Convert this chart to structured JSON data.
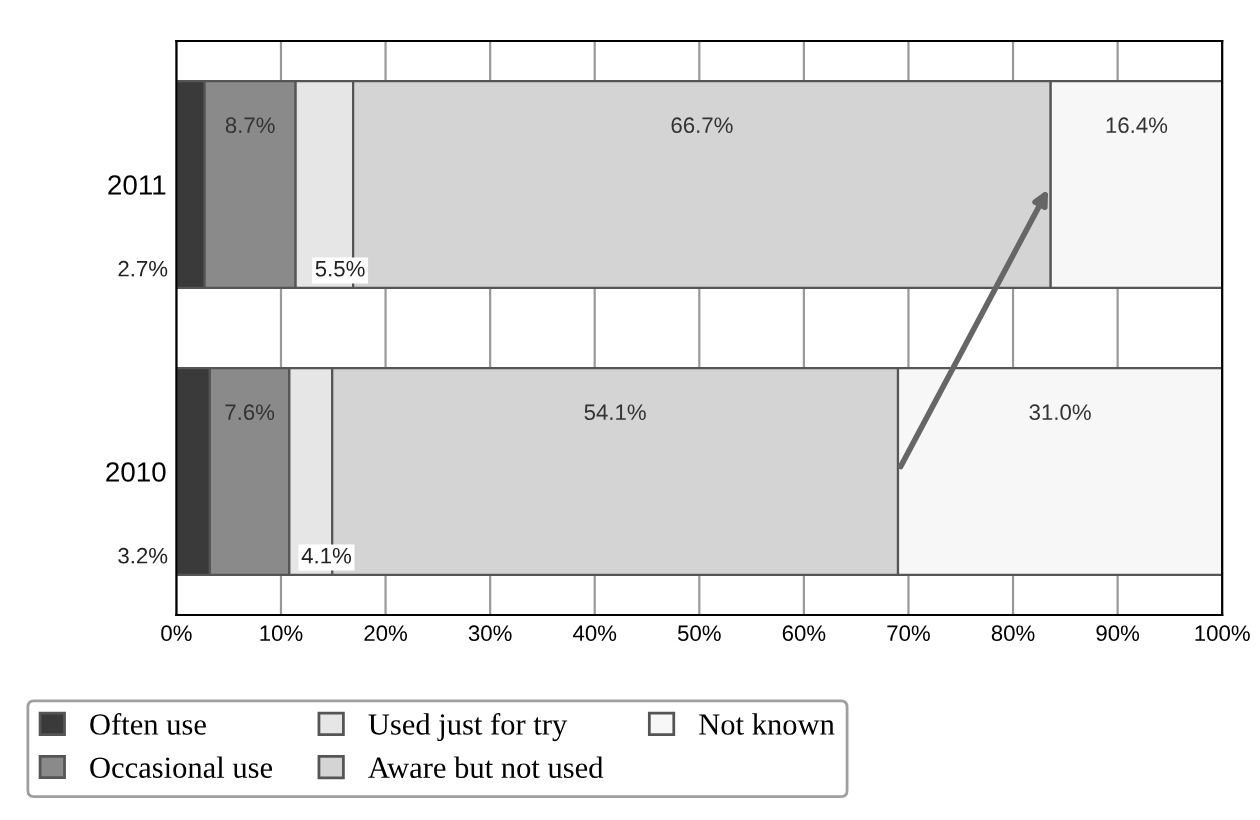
{
  "chart_data": {
    "type": "bar",
    "orientation": "horizontal",
    "stacked": true,
    "categories": [
      "2011",
      "2010"
    ],
    "series": [
      {
        "name": "Often use",
        "color": "#3a3a3a",
        "values": [
          2.7,
          3.2
        ],
        "value_labels": [
          "2.7%",
          "3.2%"
        ]
      },
      {
        "name": "Occasional use",
        "color": "#8a8a8a",
        "values": [
          8.7,
          7.6
        ],
        "value_labels": [
          "8.7%",
          "7.6%"
        ]
      },
      {
        "name": "Used just for try",
        "color": "#e6e6e6",
        "values": [
          5.5,
          4.1
        ],
        "value_labels": [
          "5.5%",
          "4.1%"
        ]
      },
      {
        "name": "Aware but not used",
        "color": "#d4d4d4",
        "values": [
          66.7,
          54.1
        ],
        "value_labels": [
          "66.7%",
          "54.1%"
        ]
      },
      {
        "name": "Not known",
        "color": "#f7f7f7",
        "values": [
          16.4,
          31.0
        ],
        "value_labels": [
          "16.4%",
          "31.0%"
        ]
      }
    ],
    "xlim": [
      0,
      100
    ],
    "xticks": [
      {
        "value": 0,
        "label": "0%"
      },
      {
        "value": 10,
        "label": "10%"
      },
      {
        "value": 20,
        "label": "20%"
      },
      {
        "value": 30,
        "label": "30%"
      },
      {
        "value": 40,
        "label": "40%"
      },
      {
        "value": 50,
        "label": "50%"
      },
      {
        "value": 60,
        "label": "60%"
      },
      {
        "value": 70,
        "label": "70%"
      },
      {
        "value": 80,
        "label": "80%"
      },
      {
        "value": 90,
        "label": "90%"
      },
      {
        "value": 100,
        "label": "100%"
      }
    ],
    "grid": "x",
    "legend": "bottom"
  }
}
